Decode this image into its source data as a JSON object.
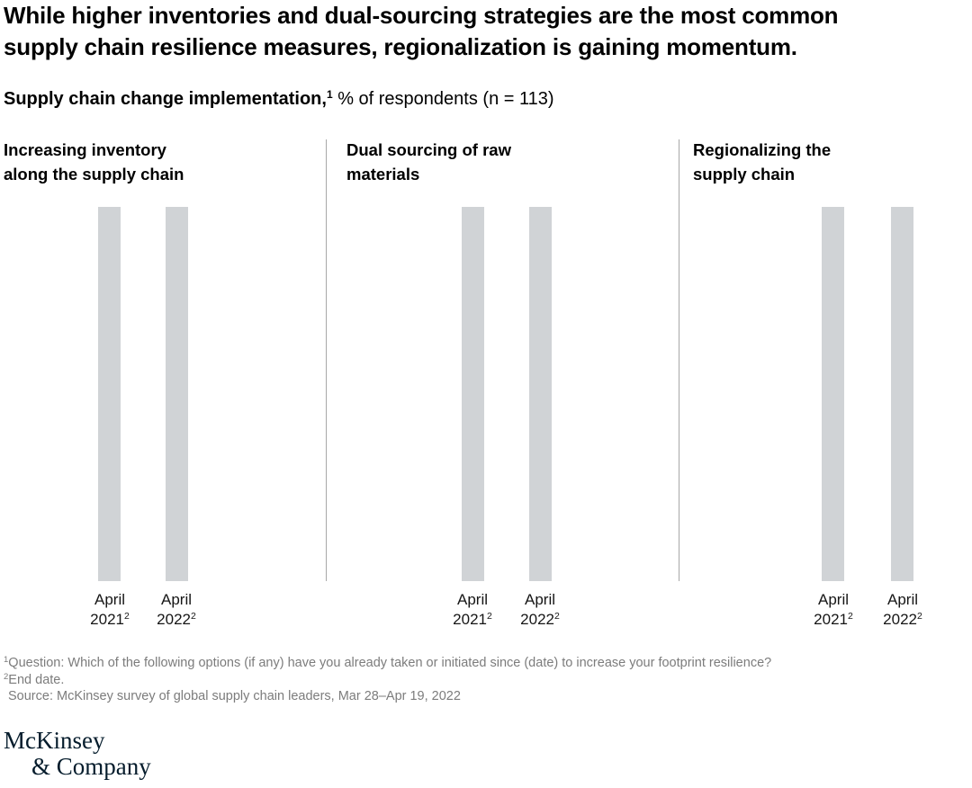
{
  "header": {
    "title": "While higher inventories and dual-sourcing strategies are the most common\nsupply chain resilience measures, regionalization is gaining momentum.",
    "subtitle_bold": "Supply chain change implementation,",
    "subtitle_footnote_marker": "1",
    "subtitle_rest": " % of respondents (n = 113)"
  },
  "panels": [
    {
      "title": "Increasing inventory\nalong the supply chain"
    },
    {
      "title": "Dual sourcing of raw\nmaterials"
    },
    {
      "title": "Regionalizing the\nsupply chain"
    }
  ],
  "x_labels": {
    "month": "April",
    "years": [
      "2021",
      "2022"
    ],
    "footnote_marker": "2"
  },
  "chart_data": [
    {
      "type": "bar",
      "title": "Increasing inventory along the supply chain",
      "categories": [
        "April 2021",
        "April 2022"
      ],
      "values": [
        100,
        100
      ],
      "values_unit": "pct_of_plot_height",
      "value_labels_shown": false,
      "bar_color": "#d0d3d6"
    },
    {
      "type": "bar",
      "title": "Dual sourcing of raw materials",
      "categories": [
        "April 2021",
        "April 2022"
      ],
      "values": [
        100,
        100
      ],
      "values_unit": "pct_of_plot_height",
      "value_labels_shown": false,
      "bar_color": "#d0d3d6"
    },
    {
      "type": "bar",
      "title": "Regionalizing the supply chain",
      "categories": [
        "April 2021",
        "April 2022"
      ],
      "values": [
        100,
        100
      ],
      "values_unit": "pct_of_plot_height",
      "value_labels_shown": false,
      "bar_color": "#d0d3d6"
    }
  ],
  "chart_note": "All six bars are rendered as uniform gray placeholder columns of equal height; no numeric data labels or axes are visible in the image.",
  "footnotes": {
    "line1_marker": "1",
    "line1": "Question: Which of the following options (if any) have you already taken or initiated since (date) to increase your footprint resilience?",
    "line2_marker": "2",
    "line2": "End date.",
    "line3": "Source: McKinsey survey of global supply chain leaders, Mar 28–Apr 19, 2022"
  },
  "logo": {
    "line1": "McKinsey",
    "line2": "& Company"
  },
  "colors": {
    "bar": "#d0d3d6",
    "separator": "#a8a8a8",
    "footnote_text": "#7c7c7c",
    "axis_label_text": "#161616",
    "title_text": "#000000",
    "logo_navy": "#051c2c",
    "background": "#ffffff"
  }
}
